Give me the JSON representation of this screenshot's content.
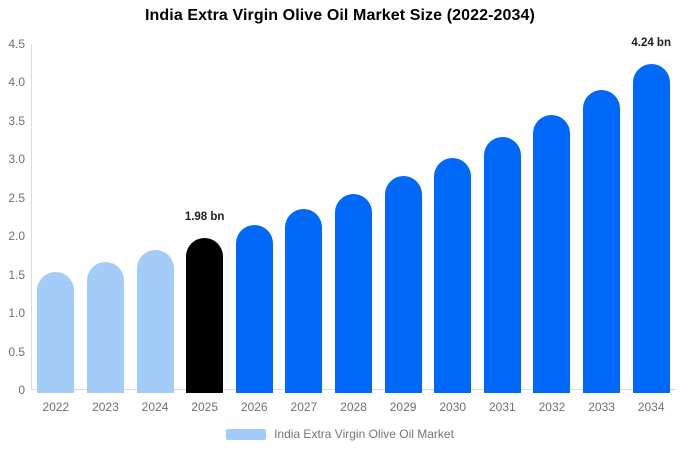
{
  "chart_data": {
    "type": "bar",
    "title": "India Extra Virgin Olive Oil Market Size (2022-2034)",
    "categories": [
      "2022",
      "2023",
      "2024",
      "2025",
      "2026",
      "2027",
      "2028",
      "2029",
      "2030",
      "2031",
      "2032",
      "2033",
      "2034"
    ],
    "values": [
      1.54,
      1.67,
      1.82,
      1.98,
      2.15,
      2.35,
      2.55,
      2.78,
      3.02,
      3.29,
      3.58,
      3.9,
      4.24
    ],
    "unit": "bn",
    "ylim": [
      0,
      4.5
    ],
    "yticks": [
      "4.5",
      "4.0",
      "3.5",
      "3.0",
      "2.5",
      "2.0",
      "1.5",
      "1.0",
      "0.5",
      "0"
    ],
    "grid": false,
    "legend_position": "bottom",
    "bar_colors": [
      "#A3CCF8",
      "#A3CCF8",
      "#A3CCF8",
      "#000000",
      "#0069FA",
      "#0069FA",
      "#0069FA",
      "#0069FA",
      "#0069FA",
      "#0069FA",
      "#0069FA",
      "#0069FA",
      "#0069FA"
    ],
    "annotations": [
      {
        "category": "2025",
        "text": "1.98 bn"
      },
      {
        "category": "2034",
        "text": "4.24 bn"
      }
    ],
    "colors": {
      "light_blue": "#A3CCF8",
      "highlight_black": "#000000",
      "primary_blue": "#0069FA",
      "axis_line": "#DBDBDB",
      "tick_text": "#707070",
      "annotation_text": "#1F1F1F",
      "title_text": "#000000",
      "legend_text": "#757575",
      "background": "#FFFFFF"
    },
    "legend": {
      "entries": [
        {
          "label": "India Extra Virgin Olive Oil Market",
          "color": "#A3CCF8"
        }
      ]
    }
  }
}
